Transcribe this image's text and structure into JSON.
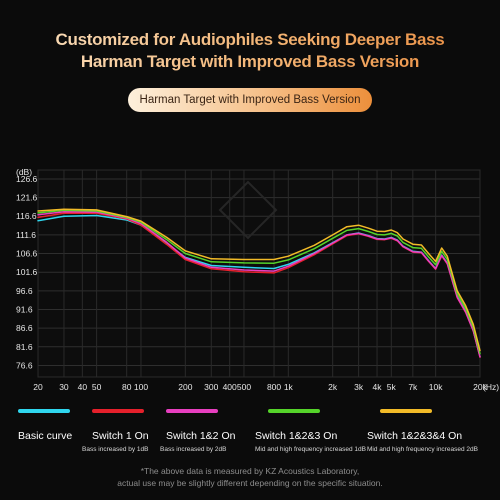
{
  "headline": {
    "line1": "Customized for Audiophiles Seeking Deeper Bass",
    "line2": "Harman Target with Improved Bass Version"
  },
  "badge": "Harman Target with Improved Bass Version",
  "chart_data": {
    "type": "line",
    "ylabel": "(dB)",
    "xunit": "(Hz)",
    "xscale": "log",
    "xlim": [
      20,
      20000
    ],
    "ylim": [
      73.5,
      129
    ],
    "grid": true,
    "legend_position": "bottom",
    "yticks": [
      126.6,
      121.6,
      116.6,
      111.6,
      106.6,
      101.6,
      96.6,
      91.6,
      86.6,
      81.6,
      76.6
    ],
    "xticks": [
      {
        "value": 20,
        "label": "20"
      },
      {
        "value": 30,
        "label": "30"
      },
      {
        "value": 40,
        "label": "40"
      },
      {
        "value": 50,
        "label": "50"
      },
      {
        "value": 80,
        "label": "80"
      },
      {
        "value": 100,
        "label": "100"
      },
      {
        "value": 200,
        "label": "200"
      },
      {
        "value": 300,
        "label": "300"
      },
      {
        "value": 400,
        "label": "400"
      },
      {
        "value": 500,
        "label": "500"
      },
      {
        "value": 800,
        "label": "800"
      },
      {
        "value": 1000,
        "label": "1k"
      },
      {
        "value": 2000,
        "label": "2k"
      },
      {
        "value": 3000,
        "label": "3k"
      },
      {
        "value": 4000,
        "label": "4k"
      },
      {
        "value": 5000,
        "label": "5k"
      },
      {
        "value": 7000,
        "label": "7k"
      },
      {
        "value": 10000,
        "label": "10k"
      },
      {
        "value": 20000,
        "label": "20k"
      }
    ],
    "series": [
      {
        "name": "Basic curve",
        "description": "",
        "color": "#2fd6ee",
        "x": [
          20,
          30,
          50,
          80,
          100,
          150,
          200,
          300,
          500,
          800,
          1000,
          1500,
          2000,
          2500,
          3000,
          3500,
          4000,
          4500,
          5000,
          5500,
          6000,
          7000,
          8000,
          9000,
          10000,
          11000,
          12000,
          14000,
          16000,
          18000,
          20000
        ],
        "y": [
          115.4,
          116.6,
          116.8,
          115.6,
          114.2,
          109.2,
          105.6,
          103.4,
          102.9,
          102.6,
          103.7,
          106.8,
          109.5,
          111.6,
          112.1,
          111.4,
          110.6,
          110.5,
          110.9,
          110.2,
          108.6,
          107.2,
          107.0,
          104.6,
          102.6,
          106.2,
          104.0,
          95.0,
          91.0,
          86.0,
          79.0
        ]
      },
      {
        "name": "Switch 1 On",
        "description": "Bass increased by 1dB",
        "color": "#e5202b",
        "x": [
          20,
          30,
          50,
          80,
          100,
          150,
          200,
          300,
          500,
          800,
          1000,
          1500,
          2000,
          2500,
          3000,
          3500,
          4000,
          4500,
          5000,
          5500,
          6000,
          7000,
          8000,
          9000,
          10000,
          11000,
          12000,
          14000,
          16000,
          18000,
          20000
        ],
        "y": [
          116.3,
          117.4,
          117.4,
          115.9,
          114.2,
          109.0,
          105.0,
          102.5,
          101.7,
          101.4,
          102.8,
          106.3,
          109.2,
          111.4,
          111.9,
          111.2,
          110.4,
          110.3,
          110.7,
          110.0,
          108.4,
          107.0,
          106.8,
          104.4,
          102.4,
          106.0,
          103.8,
          94.8,
          90.8,
          85.8,
          78.8
        ]
      },
      {
        "name": "Switch 1&2 On",
        "description": "Bass increased by 2dB",
        "color": "#e83fc0",
        "x": [
          20,
          30,
          50,
          80,
          100,
          150,
          200,
          300,
          500,
          800,
          1000,
          1500,
          2000,
          2500,
          3000,
          3500,
          4000,
          4500,
          5000,
          5500,
          6000,
          7000,
          8000,
          9000,
          10000,
          11000,
          12000,
          14000,
          16000,
          18000,
          20000
        ],
        "y": [
          117.0,
          117.8,
          117.7,
          116.1,
          114.6,
          109.6,
          105.4,
          102.9,
          102.2,
          101.9,
          103.2,
          106.6,
          109.4,
          111.6,
          112.0,
          111.3,
          110.5,
          110.4,
          110.8,
          110.1,
          108.5,
          107.1,
          106.9,
          104.5,
          102.5,
          106.1,
          103.9,
          94.9,
          90.9,
          85.9,
          78.9
        ]
      },
      {
        "name": "Switch 1&2&3 On",
        "description": "Mid and high frequency increased 1dB",
        "color": "#55d42a",
        "x": [
          20,
          30,
          50,
          80,
          100,
          150,
          200,
          300,
          500,
          800,
          1000,
          1500,
          2000,
          2500,
          3000,
          3500,
          4000,
          4500,
          5000,
          5500,
          6000,
          7000,
          8000,
          9000,
          10000,
          11000,
          12000,
          14000,
          16000,
          18000,
          20000
        ],
        "y": [
          117.5,
          118.2,
          118.0,
          116.3,
          115.0,
          110.3,
          106.6,
          104.4,
          104.1,
          104.0,
          104.9,
          107.9,
          110.7,
          112.8,
          113.3,
          112.5,
          111.7,
          111.6,
          112.0,
          111.3,
          109.6,
          108.2,
          108.0,
          105.6,
          103.6,
          107.2,
          105.0,
          95.8,
          91.8,
          86.8,
          79.8
        ]
      },
      {
        "name": "Switch 1&2&3&4 On",
        "description": "Mid and high frequency increased 2dB",
        "color": "#f2bb28",
        "x": [
          20,
          30,
          50,
          80,
          100,
          150,
          200,
          300,
          500,
          800,
          1000,
          1500,
          2000,
          2500,
          3000,
          3500,
          4000,
          4500,
          5000,
          5500,
          6000,
          7000,
          8000,
          9000,
          10000,
          11000,
          12000,
          14000,
          16000,
          18000,
          20000
        ],
        "y": [
          118.0,
          118.5,
          118.3,
          116.5,
          115.3,
          110.9,
          107.3,
          105.2,
          105.0,
          105.0,
          105.9,
          108.8,
          111.6,
          113.8,
          114.2,
          113.4,
          112.6,
          112.5,
          112.9,
          112.2,
          110.5,
          109.1,
          108.9,
          106.5,
          104.5,
          108.1,
          105.9,
          96.6,
          92.6,
          87.6,
          80.6
        ]
      }
    ]
  },
  "footnote": {
    "line1": "*The above data is measured by KZ Acoustics Laboratory,",
    "line2": "actual use may be slightly different depending on the specific situation."
  }
}
